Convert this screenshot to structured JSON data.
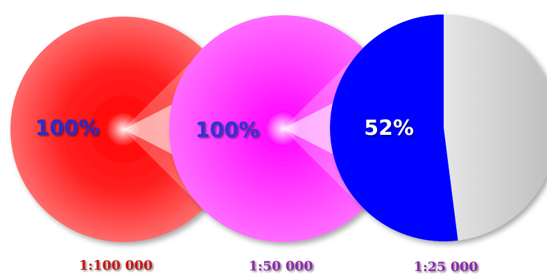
{
  "chart_data": [
    {
      "type": "pie",
      "value_label": "100%",
      "scale_label": "1:100 000",
      "values": [
        100
      ],
      "fill_color": "#ff0000",
      "label_color": "#2a2ad0",
      "scale_label_color": "#c41818"
    },
    {
      "type": "pie",
      "value_label": "100%",
      "scale_label": "1:50 000",
      "values": [
        100
      ],
      "fill_color": "#ff40ff",
      "label_color": "#3030d8",
      "scale_label_color": "#8a2aa8"
    },
    {
      "type": "pie",
      "value_label": "52%",
      "scale_label": "1:25 000",
      "values": [
        52,
        48
      ],
      "fill_color": "#0000ff",
      "rest_color": "#c8c8c8",
      "label_color": "#ffffff",
      "scale_label_color": "#8a2aa8"
    }
  ]
}
